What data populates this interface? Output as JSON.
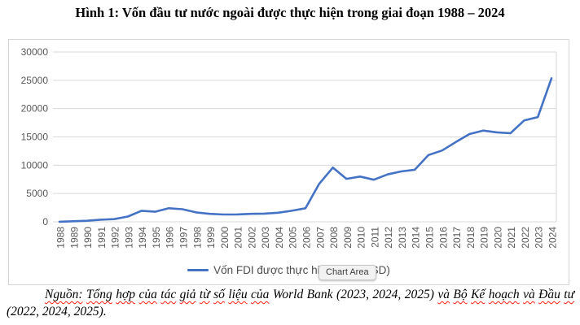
{
  "title": "Hình 1: Vốn đầu tư nước ngoài được thực hiện trong giai đoạn 1988 – 2024",
  "tooltip": {
    "label": "Chart Area"
  },
  "colors": {
    "line": "#4472C4",
    "grid": "#d9d9d9",
    "axis_text": "#595959",
    "squiggle": "#ff1f0f"
  },
  "chart_data": {
    "type": "line",
    "categories": [
      "1988",
      "1989",
      "1990",
      "1991",
      "1992",
      "1993",
      "1994",
      "1995",
      "1996",
      "1997",
      "1998",
      "1999",
      "2000",
      "2001",
      "2002",
      "2003",
      "2004",
      "2005",
      "2006",
      "2007",
      "2008",
      "2009",
      "2010",
      "2011",
      "2012",
      "2013",
      "2014",
      "2015",
      "2016",
      "2017",
      "2018",
      "2019",
      "2020",
      "2021",
      "2022",
      "2023",
      "2024"
    ],
    "series": [
      {
        "name": "Vốn FDI được thực hiện (triệu USD)",
        "values": [
          8,
          100,
          180,
          375,
          474,
          926,
          1945,
          1780,
          2395,
          2220,
          1671,
          1412,
          1298,
          1300,
          1400,
          1450,
          1610,
          1954,
          2400,
          6700,
          9579,
          7600,
          8000,
          7430,
          8368,
          8900,
          9200,
          11800,
          12600,
          14100,
          15500,
          16120,
          15800,
          15660,
          17900,
          18500,
          25350
        ]
      }
    ],
    "ylim": [
      0,
      30000
    ],
    "yticks": [
      0,
      5000,
      10000,
      15000,
      20000,
      25000,
      30000
    ],
    "xlabel": "",
    "ylabel": "",
    "grid": true,
    "legend_position": "bottom"
  },
  "footer": {
    "segments": [
      {
        "t": "Nguồn:",
        "sp": true
      },
      {
        "t": "Tổng",
        "sp": true
      },
      {
        "t": "hợp",
        "sp": true
      },
      {
        "t": "của",
        "sp": true
      },
      {
        "t": "tác",
        "sp": true
      },
      {
        "t": "giả",
        "sp": true
      },
      {
        "t": "từ",
        "sp": true
      },
      {
        "t": "số",
        "sp": true
      },
      {
        "t": "liệu",
        "sp": true
      },
      {
        "t": "của",
        "sp": true
      },
      {
        "t": "World",
        "sp": false
      },
      {
        "t": "Bank",
        "sp": false
      },
      {
        "t": "(2023,",
        "sp": false
      },
      {
        "t": "2024,",
        "sp": false
      },
      {
        "t": "2025)",
        "sp": false
      },
      {
        "t": "và",
        "sp": true
      },
      {
        "t": "Bộ",
        "sp": true
      },
      {
        "t": "Kế",
        "sp": true
      },
      {
        "t": "hoạch",
        "sp": true
      },
      {
        "t": "và",
        "sp": true
      },
      {
        "t": "Đầu",
        "sp": true
      },
      {
        "t": "tư",
        "sp": true
      },
      {
        "t": "(2022,",
        "sp": false
      },
      {
        "t": "2024,",
        "sp": false
      },
      {
        "t": "2025).",
        "sp": false
      }
    ]
  }
}
